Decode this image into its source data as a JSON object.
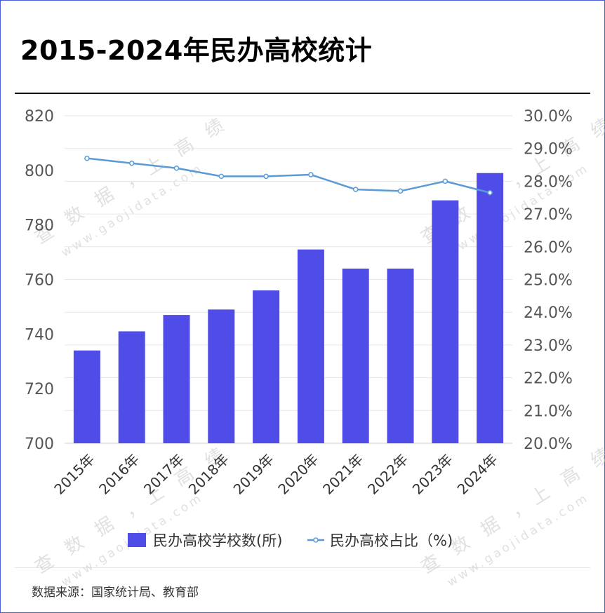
{
  "title": "2015-2024年民办高校统计",
  "source": "数据来源：国家统计局、教育部",
  "watermark": {
    "line1": "查 数 据 ，上 高 绩",
    "line2": "www.gaojidata.com"
  },
  "colors": {
    "bar": "#4f4ce8",
    "line": "#5b9bd5",
    "grid": "#e6e6e6"
  },
  "chart_data": {
    "type": "bar",
    "categories": [
      "2015年",
      "2016年",
      "2017年",
      "2018年",
      "2019年",
      "2020年",
      "2021年",
      "2022年",
      "2023年",
      "2024年"
    ],
    "series": [
      {
        "name": "民办高校学校数(所)",
        "type": "bar",
        "axis": "left",
        "values": [
          734,
          741,
          747,
          749,
          756,
          771,
          764,
          764,
          789,
          799
        ]
      },
      {
        "name": "民办高校占比（%)",
        "type": "line",
        "axis": "right",
        "values": [
          28.7,
          28.55,
          28.4,
          28.15,
          28.15,
          28.2,
          27.75,
          27.7,
          28.0,
          27.65
        ]
      }
    ],
    "y_left": {
      "min": 700,
      "max": 820,
      "step": 20,
      "ticks": [
        "700",
        "720",
        "740",
        "760",
        "780",
        "800",
        "820"
      ]
    },
    "y_right": {
      "min": 20,
      "max": 30,
      "step": 1,
      "ticks": [
        "20.0%",
        "21.0%",
        "22.0%",
        "23.0%",
        "24.0%",
        "25.0%",
        "26.0%",
        "27.0%",
        "28.0%",
        "29.0%",
        "30.0%"
      ]
    },
    "grid": true,
    "legend": "bottom"
  }
}
